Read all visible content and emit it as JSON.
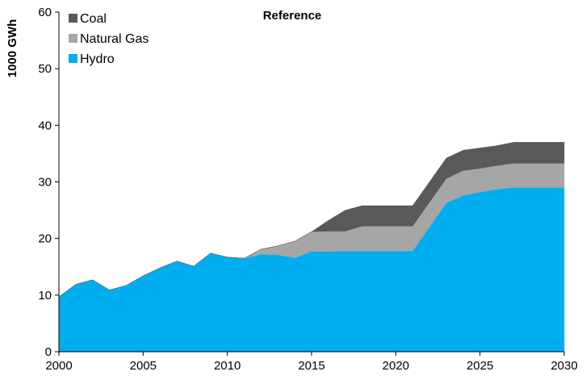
{
  "chart_data": {
    "type": "area",
    "stacked": true,
    "title": "Reference",
    "ylabel": "1000 GWh",
    "xlabel": "",
    "xlim": [
      2000,
      2030
    ],
    "ylim": [
      0,
      60
    ],
    "x_ticks": [
      "2000",
      "2005",
      "2010",
      "2015",
      "2020",
      "2025",
      "2030"
    ],
    "y_ticks": [
      "0",
      "10",
      "20",
      "30",
      "40",
      "50",
      "60"
    ],
    "grid": false,
    "legend_position": "top-left",
    "x": [
      2000,
      2001,
      2002,
      2003,
      2004,
      2005,
      2006,
      2007,
      2008,
      2009,
      2010,
      2011,
      2012,
      2013,
      2014,
      2015,
      2016,
      2017,
      2018,
      2019,
      2020,
      2021,
      2022,
      2023,
      2024,
      2025,
      2026,
      2027,
      2028,
      2029,
      2030
    ],
    "series": [
      {
        "name": "Hydro",
        "color": "#00aeef",
        "values": [
          9.7,
          11.9,
          12.7,
          10.9,
          11.7,
          13.4,
          14.8,
          16.0,
          15.1,
          17.4,
          16.7,
          16.5,
          17.2,
          17.1,
          16.6,
          17.7,
          17.7,
          17.8,
          17.8,
          17.8,
          17.8,
          17.8,
          22.0,
          26.3,
          27.6,
          28.2,
          28.7,
          29.0,
          29.0,
          29.0,
          29.0
        ]
      },
      {
        "name": "Natural Gas",
        "color": "#a6a6a6",
        "values": [
          0,
          0,
          0,
          0,
          0,
          0,
          0,
          0,
          0,
          0,
          0,
          0,
          0.9,
          1.6,
          2.9,
          3.5,
          3.6,
          3.5,
          4.4,
          4.4,
          4.4,
          4.4,
          4.4,
          4.3,
          4.4,
          4.2,
          4.2,
          4.3,
          4.3,
          4.3,
          4.3
        ]
      },
      {
        "name": "Coal",
        "color": "#595959",
        "values": [
          0,
          0,
          0,
          0,
          0,
          0,
          0,
          0,
          0,
          0,
          0,
          0,
          0,
          0,
          0,
          0,
          1.9,
          3.7,
          3.6,
          3.6,
          3.6,
          3.6,
          3.6,
          3.6,
          3.6,
          3.6,
          3.5,
          3.7,
          3.7,
          3.7,
          3.7
        ]
      }
    ],
    "legend_order": [
      "Coal",
      "Natural Gas",
      "Hydro"
    ]
  }
}
